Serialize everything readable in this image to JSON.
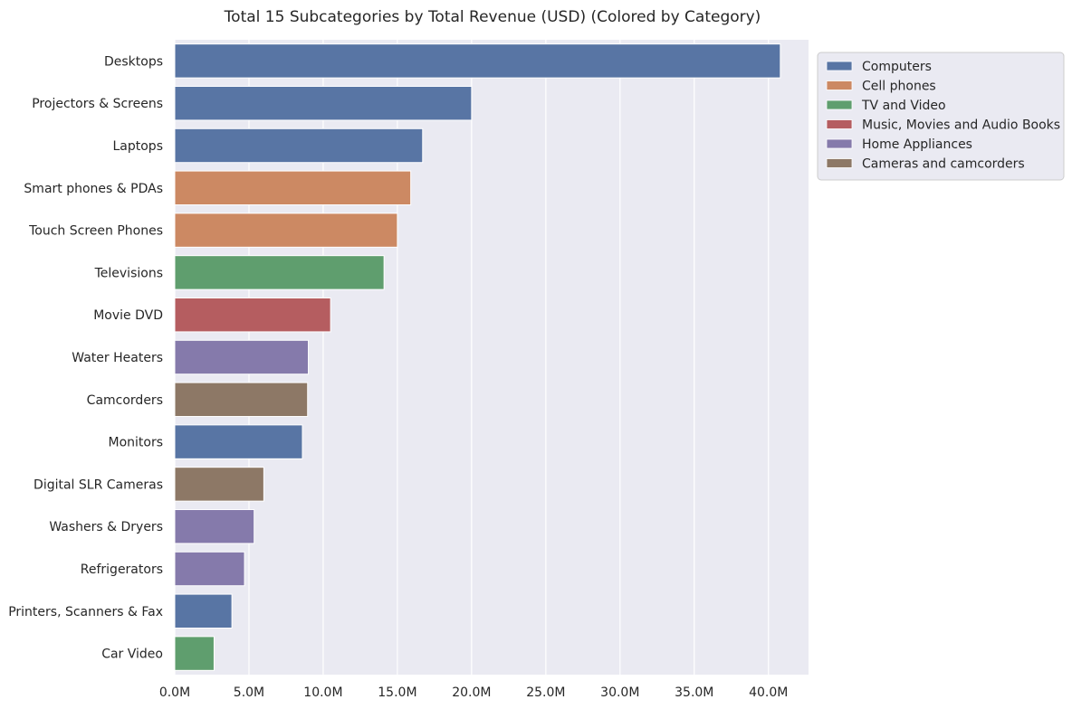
{
  "chart_data": {
    "type": "bar",
    "orientation": "horizontal",
    "title": "Total 15 Subcategories by Total Revenue (USD) (Colored by Category)",
    "xlabel": "",
    "ylabel": "",
    "xlim": [
      0,
      42.7
    ],
    "x_ticks": [
      0,
      5,
      10,
      15,
      20,
      25,
      30,
      35,
      40
    ],
    "x_tick_labels": [
      "0.0M",
      "5.0M",
      "10.0M",
      "15.0M",
      "20.0M",
      "25.0M",
      "30.0M",
      "35.0M",
      "40.0M"
    ],
    "unit": "M",
    "grid": true,
    "legend_placement": "outside-top-right",
    "categories": [
      "Computers",
      "Cell phones",
      "TV and Video",
      "Music, Movies and Audio Books",
      "Home Appliances",
      "Cameras and camcorders"
    ],
    "category_colors": {
      "Computers": "#5875a4",
      "Cell phones": "#cc8963",
      "TV and Video": "#5f9e6e",
      "Music, Movies and Audio Books": "#b55d60",
      "Home Appliances": "#857aab",
      "Cameras and camcorders": "#8d7866"
    },
    "bars": [
      {
        "label": "Desktops",
        "value": 40.8,
        "category": "Computers"
      },
      {
        "label": "Projectors & Screens",
        "value": 20.0,
        "category": "Computers"
      },
      {
        "label": "Laptops",
        "value": 16.7,
        "category": "Computers"
      },
      {
        "label": "Smart phones & PDAs",
        "value": 15.9,
        "category": "Cell phones"
      },
      {
        "label": "Touch Screen Phones",
        "value": 15.0,
        "category": "Cell phones"
      },
      {
        "label": "Televisions",
        "value": 14.1,
        "category": "TV and Video"
      },
      {
        "label": "Movie DVD",
        "value": 10.5,
        "category": "Music, Movies and Audio Books"
      },
      {
        "label": "Water Heaters",
        "value": 9.0,
        "category": "Home Appliances"
      },
      {
        "label": "Camcorders",
        "value": 8.95,
        "category": "Cameras and camcorders"
      },
      {
        "label": "Monitors",
        "value": 8.6,
        "category": "Computers"
      },
      {
        "label": "Digital SLR Cameras",
        "value": 6.0,
        "category": "Cameras and camcorders"
      },
      {
        "label": "Washers & Dryers",
        "value": 5.35,
        "category": "Home Appliances"
      },
      {
        "label": "Refrigerators",
        "value": 4.7,
        "category": "Home Appliances"
      },
      {
        "label": "Printers, Scanners & Fax",
        "value": 3.85,
        "category": "Computers"
      },
      {
        "label": "Car Video",
        "value": 2.65,
        "category": "TV and Video"
      }
    ]
  }
}
